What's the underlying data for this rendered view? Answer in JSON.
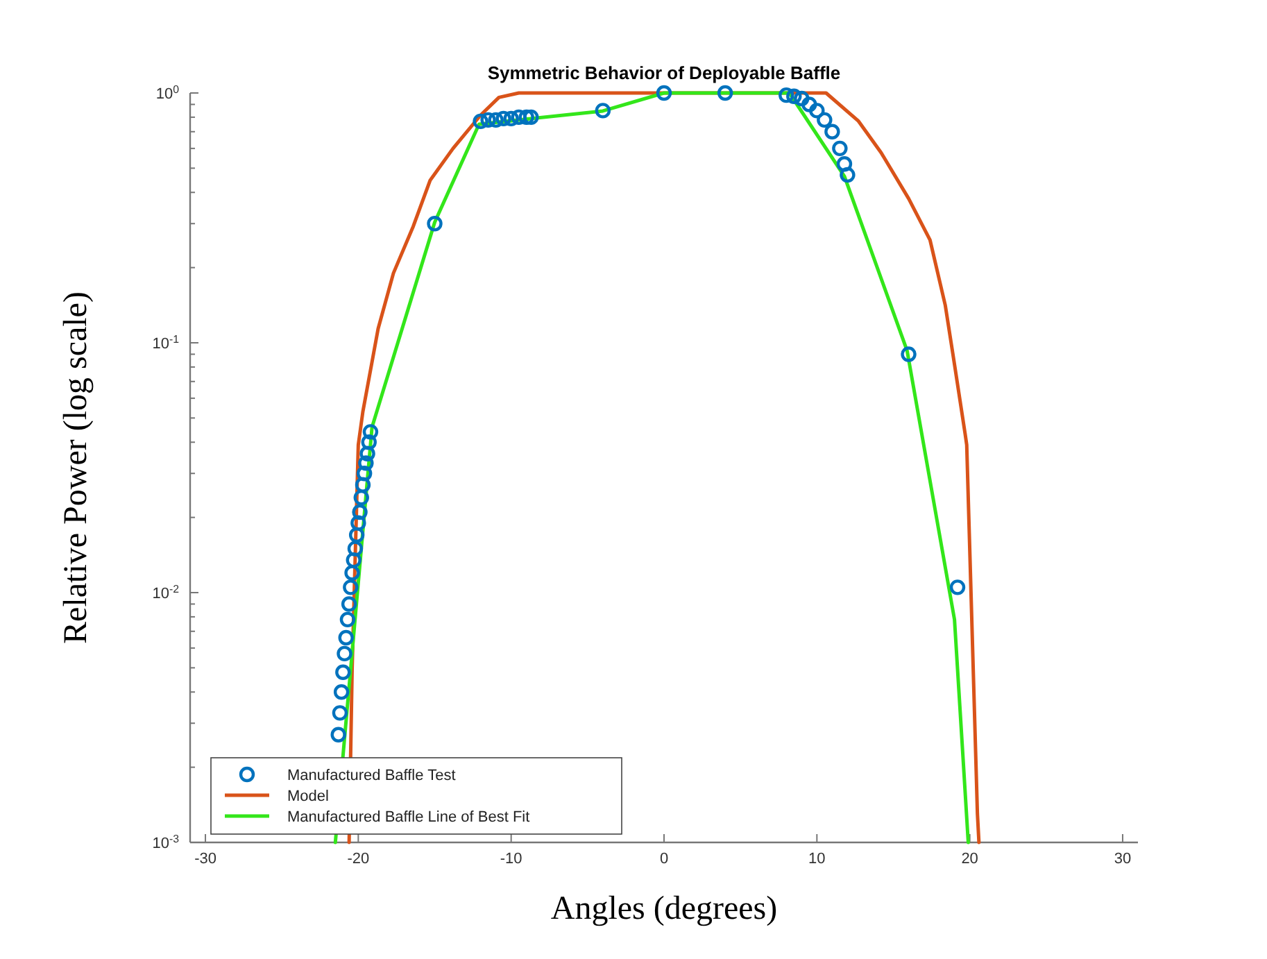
{
  "chart_data": {
    "type": "line",
    "title": "Symmetric Behavior of Deployable Baffle",
    "xlabel": "Angles (degrees)",
    "ylabel": "Relative Power (log scale)",
    "log": "y",
    "legend": "bottom left",
    "grid": false,
    "xlim": [
      -31,
      31
    ],
    "xticks": [
      -30,
      -20,
      -10,
      0,
      10,
      20,
      30
    ],
    "ylim": [
      0.001,
      1
    ],
    "yticks": [
      {
        "value": 0.001,
        "label": "10$^{-3}$"
      },
      {
        "value": 0.002,
        "label": null
      },
      {
        "value": 0.003,
        "label": null
      },
      {
        "value": 0.004,
        "label": null
      },
      {
        "value": 0.005,
        "label": null
      },
      {
        "value": 0.006,
        "label": null
      },
      {
        "value": 0.007,
        "label": null
      },
      {
        "value": 0.008,
        "label": null
      },
      {
        "value": 0.009,
        "label": null
      },
      {
        "value": 0.01,
        "label": "10$^{-2}$"
      },
      {
        "value": 0.02,
        "label": null
      },
      {
        "value": 0.03,
        "label": null
      },
      {
        "value": 0.04,
        "label": null
      },
      {
        "value": 0.05,
        "label": null
      },
      {
        "value": 0.06,
        "label": null
      },
      {
        "value": 0.07,
        "label": null
      },
      {
        "value": 0.08,
        "label": null
      },
      {
        "value": 0.09,
        "label": null
      },
      {
        "value": 0.1,
        "label": "10$^{-1}$"
      },
      {
        "value": 0.2,
        "label": null
      },
      {
        "value": 0.3,
        "label": null
      },
      {
        "value": 0.4,
        "label": null
      },
      {
        "value": 0.5,
        "label": null
      },
      {
        "value": 0.6,
        "label": null
      },
      {
        "value": 0.7,
        "label": null
      },
      {
        "value": 0.8,
        "label": null
      },
      {
        "value": 0.9,
        "label": null
      },
      {
        "value": 1,
        "label": "10$^{0}$"
      }
    ],
    "series": [
      {
        "name": "Manufactured Baffle Test",
        "type": "scatter",
        "marker": "circle",
        "color": "#0072bd",
        "x": [
          -21.3,
          -21.2,
          -21.1,
          -21.0,
          -20.9,
          -20.8,
          -20.7,
          -20.6,
          -20.5,
          -20.4,
          -20.3,
          -20.2,
          -20.1,
          -20.0,
          -19.9,
          -19.8,
          -19.7,
          -19.6,
          -19.5,
          -19.4,
          -19.3,
          -19.2,
          -15,
          -12,
          -11.5,
          -11,
          -10.5,
          -10,
          -9.5,
          -9,
          -8.7,
          -4,
          0,
          4,
          8,
          8.5,
          9,
          9.5,
          10,
          10.5,
          11,
          11.5,
          11.8,
          12,
          16,
          19.2
        ],
        "values": [
          0.0027,
          0.0033,
          0.004,
          0.0048,
          0.0057,
          0.0066,
          0.0078,
          0.009,
          0.0105,
          0.012,
          0.0135,
          0.015,
          0.017,
          0.019,
          0.021,
          0.024,
          0.027,
          0.03,
          0.033,
          0.036,
          0.04,
          0.044,
          0.3,
          0.77,
          0.78,
          0.78,
          0.79,
          0.79,
          0.8,
          0.8,
          0.8,
          0.85,
          1.0,
          1.0,
          0.98,
          0.97,
          0.95,
          0.9,
          0.85,
          0.78,
          0.7,
          0.6,
          0.52,
          0.47,
          0.09,
          0.0105
        ]
      },
      {
        "name": "Model",
        "type": "line",
        "color": "#d95319",
        "x": [
          -20.6,
          -20.4,
          -20,
          -19.7,
          -18.7,
          -17.7,
          -16.4,
          -15.3,
          -13.8,
          -12,
          -10.8,
          -9.5,
          0,
          10.6,
          12.7,
          14.2,
          16,
          17.4,
          18.4,
          19,
          19.7,
          19.8,
          20.5,
          20.6
        ],
        "values": [
          0.001,
          0.005,
          0.039,
          0.053,
          0.114,
          0.19,
          0.293,
          0.447,
          0.6,
          0.815,
          0.96,
          1.0,
          1.0,
          1.0,
          0.774,
          0.577,
          0.378,
          0.258,
          0.141,
          0.082,
          0.043,
          0.039,
          0.0013,
          0.001
        ]
      },
      {
        "name": "Manufactured Baffle Line of Best Fit",
        "type": "line",
        "color": "#33e61a",
        "x": [
          -21.5,
          -19.1,
          -15,
          -12.1,
          -4,
          0,
          4,
          8.2,
          11.8,
          15.9,
          19,
          19.9
        ],
        "values": [
          0.001,
          0.046,
          0.304,
          0.75,
          0.847,
          1.0,
          1.0,
          1.0,
          0.464,
          0.093,
          0.0078,
          0.001
        ]
      }
    ]
  }
}
